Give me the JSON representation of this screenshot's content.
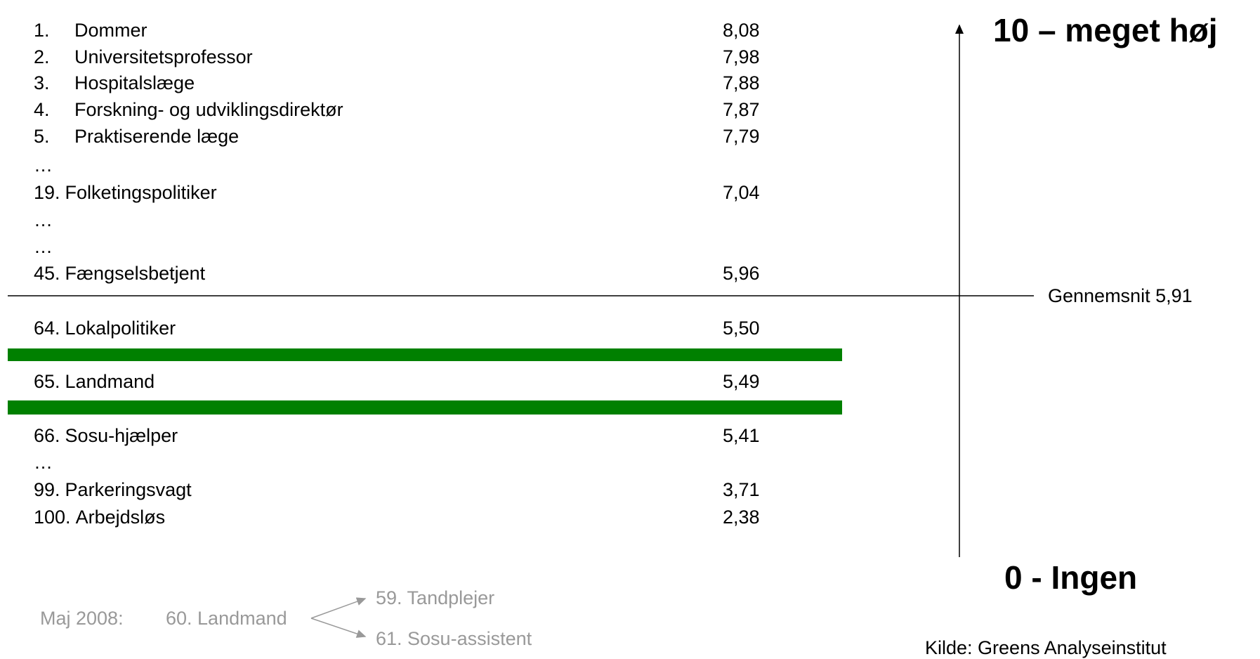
{
  "ranking": {
    "rows": [
      {
        "rank": "1.",
        "name": "Dommer",
        "value": "8,08"
      },
      {
        "rank": "2.",
        "name": "Universitetsprofessor",
        "value": "7,98"
      },
      {
        "rank": "3.",
        "name": "Hospitalslæge",
        "value": "7,88"
      },
      {
        "rank": "4.",
        "name": "Forskning- og udviklingsdirektør",
        "value": "7,87"
      },
      {
        "rank": "5.",
        "name": "Praktiserende læge",
        "value": "7,79"
      },
      {
        "ellipsis": "…"
      },
      {
        "rank": "19.",
        "name": "Folketingspolitiker",
        "value": "7,04"
      },
      {
        "ellipsis": "…"
      },
      {
        "ellipsis": "…"
      },
      {
        "rank": "45.",
        "name": "Fængselsbetjent",
        "value": "5,96"
      },
      {
        "rank": "64.",
        "name": "Lokalpolitiker",
        "value": "5,50"
      },
      {
        "rank": "65.",
        "name": "Landmand",
        "value": "5,49"
      },
      {
        "rank": "66.",
        "name": "Sosu-hjælper",
        "value": "5,41"
      },
      {
        "ellipsis": "…"
      },
      {
        "rank": "99.",
        "name": "Parkeringsvagt",
        "value": "3,71"
      },
      {
        "rank": "100.",
        "name": "Arbejdsløs",
        "value": "2,38"
      }
    ]
  },
  "scale": {
    "top": "10 – meget høj",
    "bottom": "0 - Ingen",
    "average": "Gennemsnit 5,91"
  },
  "note": {
    "date": "Maj 2008:",
    "item": "60. Landmand",
    "up": "59. Tandplejer",
    "down": "61. Sosu-assistent"
  },
  "source": "Kilde: Greens Analyseinstitut"
}
